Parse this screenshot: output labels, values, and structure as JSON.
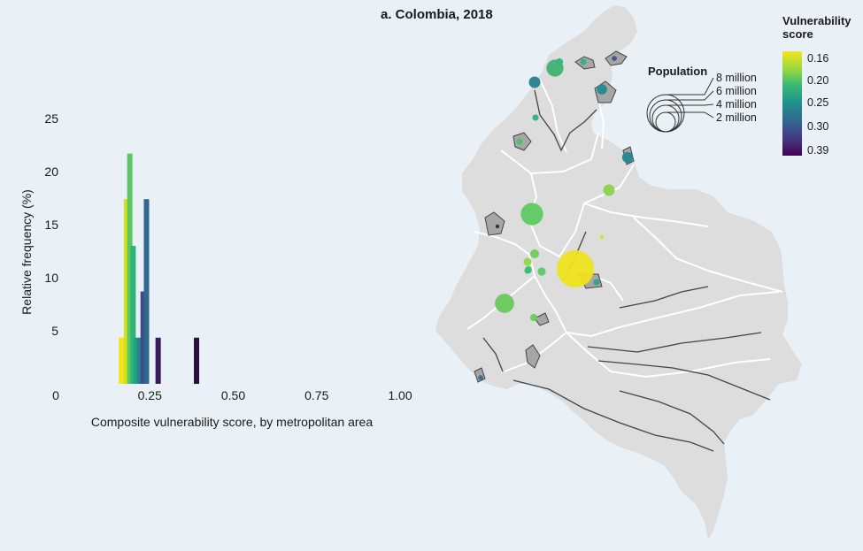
{
  "title": "a. Colombia, 2018",
  "colors": {
    "background": "#e9f0f6",
    "land": "#dddddd",
    "department_border": "#ffffff",
    "metro_area_fill": "#a6a6a6",
    "river": "#444444"
  },
  "chart_data": {
    "type": "bar",
    "subtype": "histogram",
    "xlabel": "Composite vulnerability score, by metropolitan area",
    "ylabel": "Relative frequency (%)",
    "xlim": [
      0,
      1.0
    ],
    "ylim": [
      0,
      25
    ],
    "x_ticks": [
      "0",
      "0.25",
      "0.50",
      "0.75",
      "1.00"
    ],
    "y_ticks": [
      "5",
      "10",
      "15",
      "20",
      "25"
    ],
    "bars": [
      {
        "x": 0.165,
        "value": 4.35,
        "color": "#f2e51d"
      },
      {
        "x": 0.18,
        "value": 17.4,
        "color": "#d4e01f"
      },
      {
        "x": 0.19,
        "value": 21.7,
        "color": "#5cc863"
      },
      {
        "x": 0.2,
        "value": 13.0,
        "color": "#2fb47c"
      },
      {
        "x": 0.21,
        "value": 4.35,
        "color": "#1f9e89"
      },
      {
        "x": 0.22,
        "value": 4.35,
        "color": "#26828e"
      },
      {
        "x": 0.23,
        "value": 8.7,
        "color": "#3e4a89"
      },
      {
        "x": 0.24,
        "value": 17.4,
        "color": "#31688e"
      },
      {
        "x": 0.275,
        "value": 4.35,
        "color": "#3b1c5a"
      },
      {
        "x": 0.39,
        "value": 4.35,
        "color": "#2c0f3e"
      }
    ]
  },
  "legend": {
    "population_title": "Population",
    "population_labels": [
      "8 million",
      "6 million",
      "4 million",
      "2 million"
    ],
    "vulnerability_title_line1": "Vulnerability",
    "vulnerability_title_line2": "score",
    "vulnerability_labels": [
      "0.16",
      "0.20",
      "0.25",
      "0.30",
      "0.39"
    ],
    "gradient_colors": [
      "#f2e51d",
      "#9bd93c",
      "#35b779",
      "#21908d",
      "#31688e",
      "#443983",
      "#440154"
    ]
  },
  "map": {
    "country": "Colombia",
    "metro_circles": [
      {
        "population_million": 10.5,
        "score": 0.16,
        "color": "#efe31c"
      },
      {
        "population_million": 3.8,
        "score": 0.21,
        "color": "#5ec962"
      },
      {
        "population_million": 2.8,
        "score": 0.21,
        "color": "#68c95a"
      },
      {
        "population_million": 2.2,
        "score": 0.22,
        "color": "#3db271"
      },
      {
        "population_million": 1.0,
        "score": 0.2,
        "color": "#8bd149"
      },
      {
        "population_million": 1.0,
        "score": 0.26,
        "color": "#277f8e"
      },
      {
        "population_million": 0.9,
        "score": 0.26,
        "color": "#24868e"
      },
      {
        "population_million": 0.8,
        "score": 0.25,
        "color": "#238a8d"
      },
      {
        "population_million": 0.6,
        "score": 0.21,
        "color": "#6cce59"
      },
      {
        "population_million": 0.5,
        "score": 0.2,
        "color": "#8fd744"
      },
      {
        "population_million": 0.5,
        "score": 0.21,
        "color": "#5ec962"
      },
      {
        "population_million": 0.4,
        "score": 0.21,
        "color": "#6ccd5a"
      },
      {
        "population_million": 0.4,
        "score": 0.23,
        "color": "#34b679"
      },
      {
        "population_million": 0.4,
        "score": 0.21,
        "color": "#4fc36b"
      },
      {
        "population_million": 0.3,
        "score": 0.23,
        "color": "#2eb37c"
      },
      {
        "population_million": 0.3,
        "score": 0.22,
        "color": "#3bbb75"
      },
      {
        "population_million": 0.3,
        "score": 0.24,
        "color": "#25a584"
      },
      {
        "population_million": 0.3,
        "score": 0.22,
        "color": "#4ac16d"
      },
      {
        "population_million": 0.3,
        "score": 0.23,
        "color": "#2bb07f"
      },
      {
        "population_million": 0.2,
        "score": 0.27,
        "color": "#2c718e"
      },
      {
        "population_million": 0.2,
        "score": 0.3,
        "color": "#3b528b"
      },
      {
        "population_million": 0.1,
        "score": 0.39,
        "color": "#3b1c5a"
      },
      {
        "population_million": 0.1,
        "score": 0.17,
        "color": "#d8e219"
      }
    ]
  }
}
